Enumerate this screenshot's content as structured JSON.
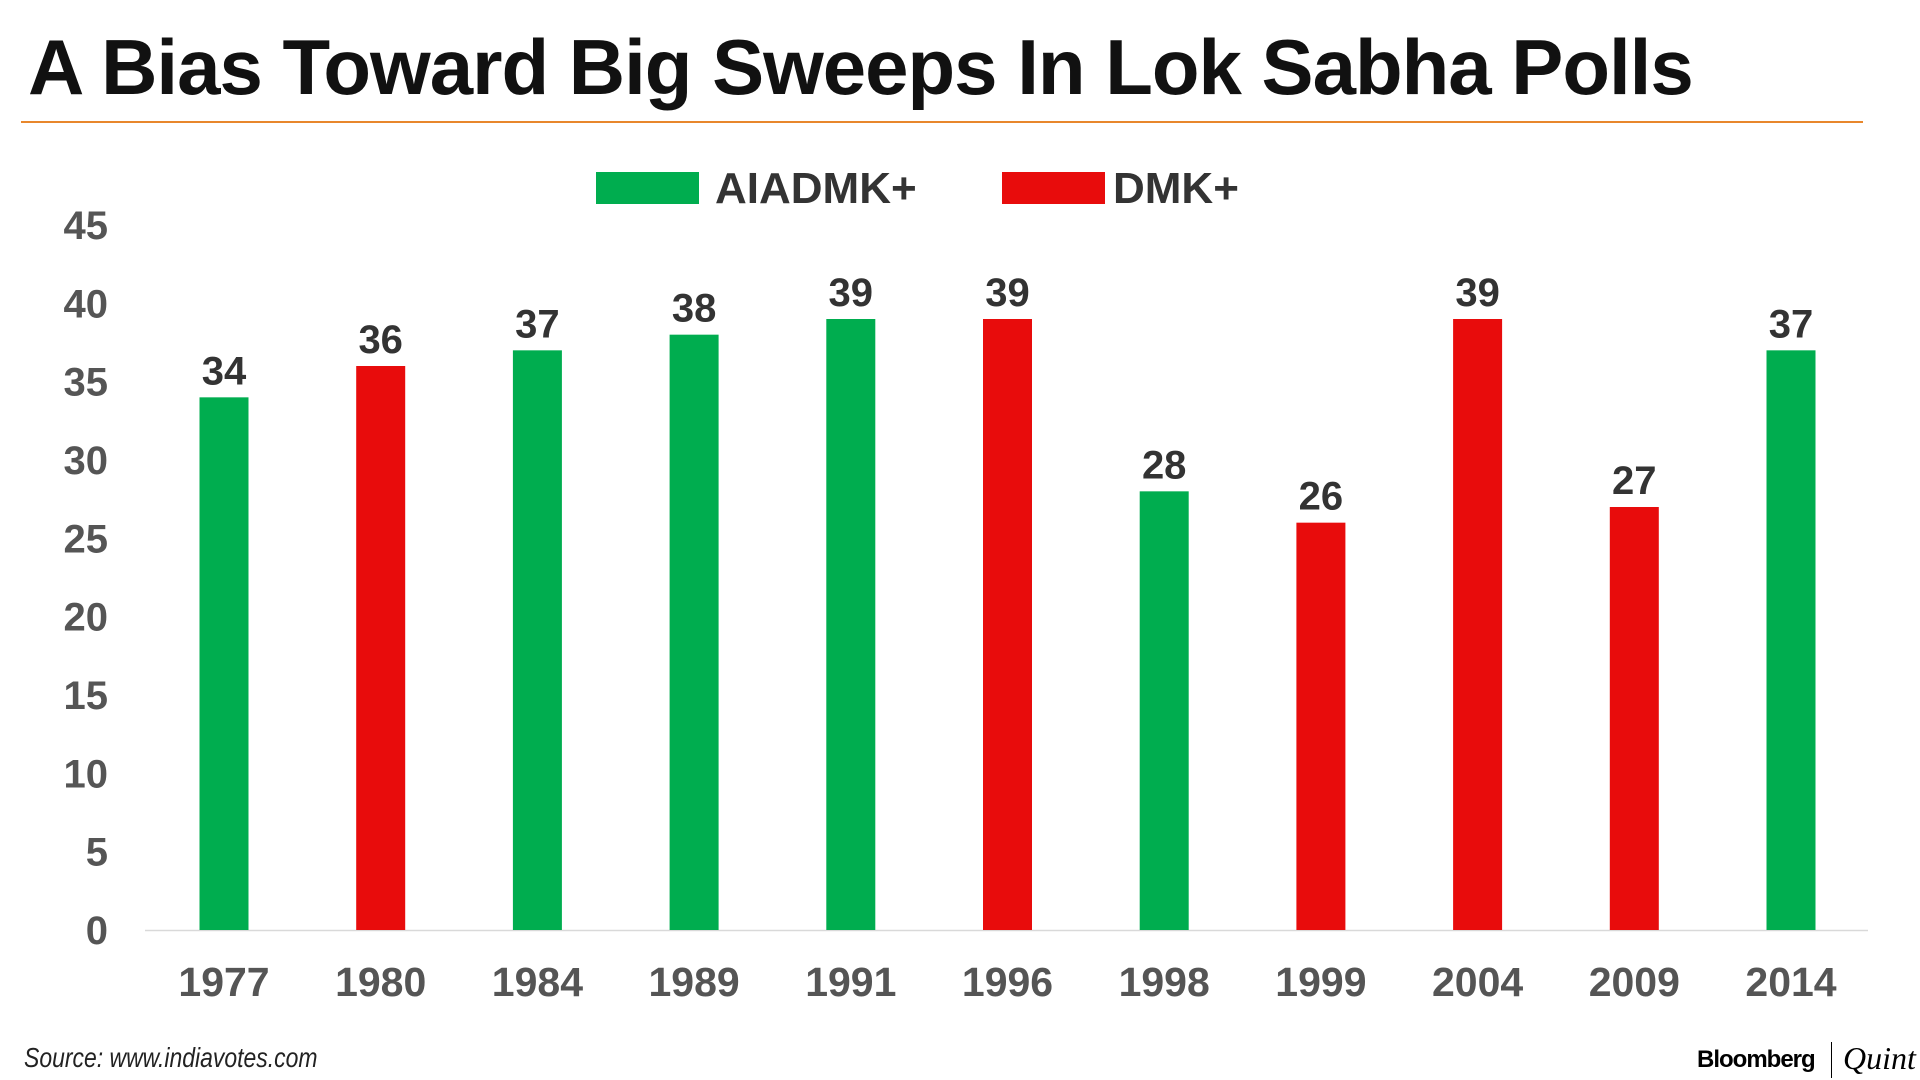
{
  "title": "A Bias Toward Big Sweeps In Lok Sabha Polls",
  "source": "Source: www.indiavotes.com",
  "brand": {
    "primary": "Bloomberg",
    "secondary": "Quint"
  },
  "chart_data": {
    "type": "bar",
    "title": "A Bias Toward Big Sweeps In Lok Sabha Polls",
    "categories": [
      "1977",
      "1980",
      "1984",
      "1989",
      "1991",
      "1996",
      "1998",
      "1999",
      "2004",
      "2009",
      "2014"
    ],
    "values": [
      34,
      36,
      37,
      38,
      39,
      39,
      28,
      26,
      39,
      27,
      37
    ],
    "winner": [
      "AIADMK+",
      "DMK+",
      "AIADMK+",
      "AIADMK+",
      "AIADMK+",
      "DMK+",
      "AIADMK+",
      "DMK+",
      "DMK+",
      "DMK+",
      "AIADMK+"
    ],
    "legend": [
      {
        "name": "AIADMK+",
        "color": "#00ad4f"
      },
      {
        "name": "DMK+",
        "color": "#e80c0c"
      }
    ],
    "legend_placement": "top-center",
    "ylim": [
      0,
      45
    ],
    "yticks": [
      0,
      5,
      10,
      15,
      20,
      25,
      30,
      35,
      40,
      45
    ],
    "grid": false,
    "data_labels": true,
    "xlabel": "",
    "ylabel": ""
  }
}
